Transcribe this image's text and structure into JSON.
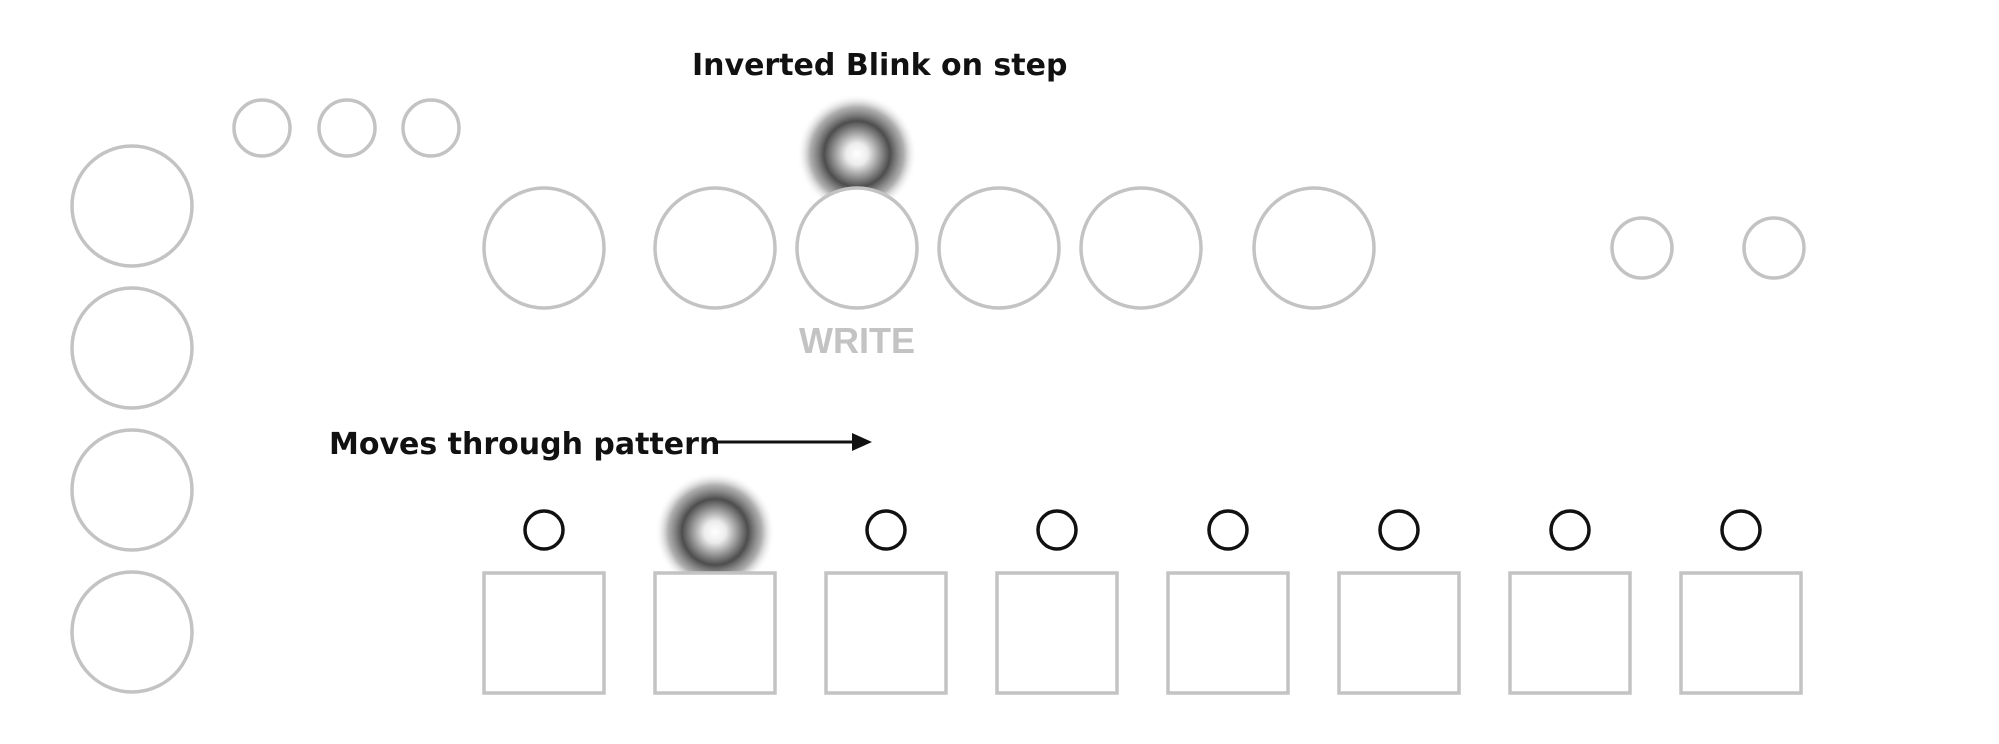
{
  "annotations": {
    "blink_label": "Inverted Blink on step",
    "moves_label": "Moves through pattern",
    "write_label": "WRITE"
  },
  "colors": {
    "outline": "#c3c3c3",
    "led_outline": "#111111",
    "text": "#111111",
    "glow_dark": "#4d4d4d"
  },
  "icons": {
    "arrow": "arrow-right-icon",
    "glow": "radial-glow-icon"
  },
  "steps": {
    "count": 8,
    "lit_step": 2
  },
  "knobs": {
    "count": 6,
    "lit_knob": 3
  }
}
